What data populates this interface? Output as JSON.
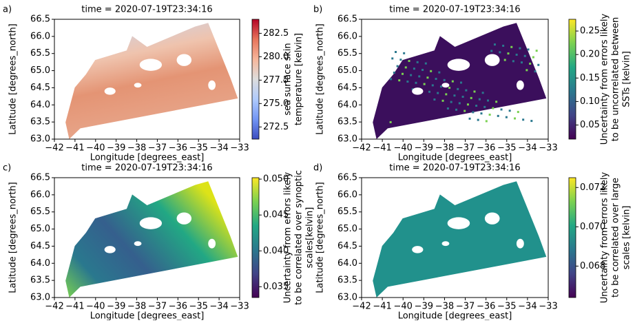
{
  "chart_data": [
    {
      "type": "map",
      "panel_label": "a)",
      "title": "time = 2020-07-19T23:34:16",
      "xlabel": "Longitude [degrees_east]",
      "ylabel": "Latitude [degrees_north]",
      "xlim": [
        -42,
        -33
      ],
      "xticks": [
        {
          "value": -42,
          "label": "−42"
        },
        {
          "value": -41,
          "label": "−41"
        },
        {
          "value": -40,
          "label": "−40"
        },
        {
          "value": -39,
          "label": "−39"
        },
        {
          "value": -38,
          "label": "−38"
        },
        {
          "value": -37,
          "label": "−37"
        },
        {
          "value": -36,
          "label": "−36"
        },
        {
          "value": -35,
          "label": "−35"
        },
        {
          "value": -34,
          "label": "−34"
        },
        {
          "value": -33,
          "label": "−33"
        }
      ],
      "ylim": [
        63,
        66.5
      ],
      "yticks": [
        {
          "value": 63,
          "label": "63.0"
        },
        63.5,
        {
          "value": 64,
          "label": "64.0"
        },
        64.5,
        {
          "value": 65,
          "label": "65.0"
        },
        65.5,
        {
          "value": 66,
          "label": "66.0"
        },
        66.5
      ],
      "colorbar": {
        "label": [
          "sea surface skin",
          "temperature [kelvin]"
        ],
        "colormap": "coolwarm",
        "lim": [
          271.2,
          284
        ],
        "ticks": [
          272.5,
          {
            "value": 275,
            "label": "275.0"
          },
          277.5,
          {
            "value": 280,
            "label": "280.0"
          },
          282.5
        ]
      }
    },
    {
      "type": "map",
      "panel_label": "b)",
      "title": "time = 2020-07-19T23:34:16",
      "xlabel": "Longitude [degrees_east]",
      "ylabel": "Latitude [degrees_north]",
      "xlim": [
        -42,
        -33
      ],
      "xticks": [
        {
          "value": -42,
          "label": "−42"
        },
        {
          "value": -41,
          "label": "−41"
        },
        {
          "value": -40,
          "label": "−40"
        },
        {
          "value": -39,
          "label": "−39"
        },
        {
          "value": -38,
          "label": "−38"
        },
        {
          "value": -37,
          "label": "−37"
        },
        {
          "value": -36,
          "label": "−36"
        },
        {
          "value": -35,
          "label": "−35"
        },
        {
          "value": -34,
          "label": "−34"
        },
        {
          "value": -33,
          "label": "−33"
        }
      ],
      "ylim": [
        63,
        66.5
      ],
      "yticks": [
        {
          "value": 63,
          "label": "63.0"
        },
        63.5,
        {
          "value": 64,
          "label": "64.0"
        },
        64.5,
        {
          "value": 65,
          "label": "65.0"
        },
        65.5,
        {
          "value": 66,
          "label": "66.0"
        },
        66.5
      ],
      "colorbar": {
        "label": [
          "Uncertainty from errors likely",
          "to be uncorrelated between",
          "SSTs [kelvin]"
        ],
        "colormap": "viridis",
        "lim": [
          0.02,
          0.275
        ],
        "ticks": [
          0.05,
          {
            "value": 0.1,
            "label": "0.10"
          },
          0.15,
          {
            "value": 0.2,
            "label": "0.20"
          },
          0.25
        ]
      }
    },
    {
      "type": "map",
      "panel_label": "c)",
      "title": "time = 2020-07-19T23:34:16",
      "xlabel": "Longitude [degrees_east]",
      "ylabel": "Latitude [degrees_north]",
      "xlim": [
        -42,
        -33
      ],
      "xticks": [
        {
          "value": -42,
          "label": "−42"
        },
        {
          "value": -41,
          "label": "−41"
        },
        {
          "value": -40,
          "label": "−40"
        },
        {
          "value": -39,
          "label": "−39"
        },
        {
          "value": -38,
          "label": "−38"
        },
        {
          "value": -37,
          "label": "−37"
        },
        {
          "value": -36,
          "label": "−36"
        },
        {
          "value": -35,
          "label": "−35"
        },
        {
          "value": -34,
          "label": "−34"
        },
        {
          "value": -33,
          "label": "−33"
        }
      ],
      "ylim": [
        63,
        66.5
      ],
      "yticks": [
        {
          "value": 63,
          "label": "63.0"
        },
        63.5,
        {
          "value": 64,
          "label": "64.0"
        },
        64.5,
        {
          "value": 65,
          "label": "65.0"
        },
        65.5,
        {
          "value": 66,
          "label": "66.0"
        },
        66.5
      ],
      "colorbar": {
        "label": [
          "Uncertainty from errors likely",
          "to be correlated over synoptic",
          "scales[kelvin]"
        ],
        "colormap": "viridis",
        "lim": [
          0.0335,
          0.0502
        ],
        "ticks": [
          0.035,
          {
            "value": 0.04,
            "label": "0.040"
          },
          0.045,
          {
            "value": 0.05,
            "label": "0.050"
          }
        ]
      }
    },
    {
      "type": "map",
      "panel_label": "d)",
      "title": "time = 2020-07-19T23:34:16",
      "xlabel": "Longitude [degrees_east]",
      "ylabel": "Latitude [degrees_north]",
      "xlim": [
        -42,
        -33
      ],
      "xticks": [
        {
          "value": -42,
          "label": "−42"
        },
        {
          "value": -41,
          "label": "−41"
        },
        {
          "value": -40,
          "label": "−40"
        },
        {
          "value": -39,
          "label": "−39"
        },
        {
          "value": -38,
          "label": "−38"
        },
        {
          "value": -37,
          "label": "−37"
        },
        {
          "value": -36,
          "label": "−36"
        },
        {
          "value": -35,
          "label": "−35"
        },
        {
          "value": -34,
          "label": "−34"
        },
        {
          "value": -33,
          "label": "−33"
        }
      ],
      "ylim": [
        63,
        66.5
      ],
      "yticks": [
        {
          "value": 63,
          "label": "63.0"
        },
        63.5,
        {
          "value": 64,
          "label": "64.0"
        },
        64.5,
        {
          "value": 65,
          "label": "65.0"
        },
        65.5,
        {
          "value": 66,
          "label": "66.0"
        },
        66.5
      ],
      "colorbar": {
        "label": [
          "Uncertainty from errors likely",
          "to be correlated over large",
          "scales [kelvin]"
        ],
        "colormap": "viridis",
        "lim": [
          0.0664,
          0.0725
        ],
        "ticks": [
          0.068,
          {
            "value": 0.07,
            "label": "0.070"
          },
          0.072
        ]
      }
    }
  ]
}
